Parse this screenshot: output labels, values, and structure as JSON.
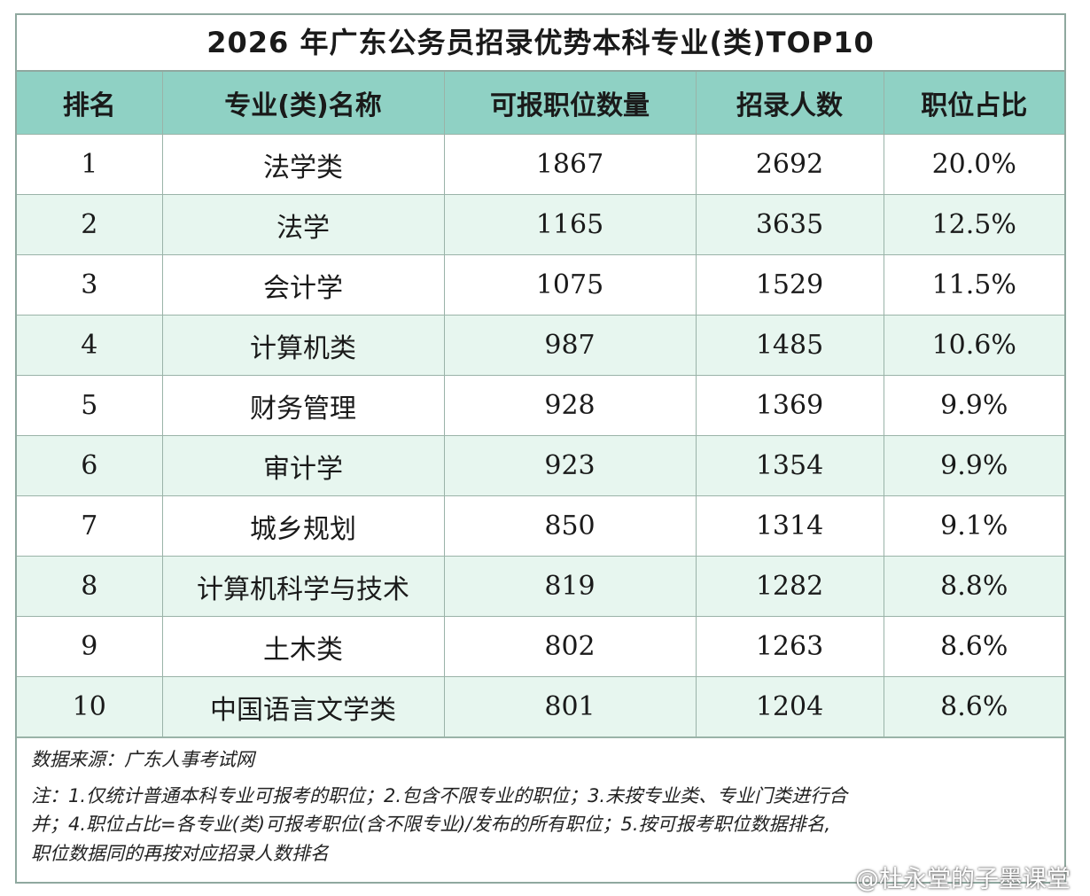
{
  "title": "2026 年广东公务员招录优势本科专业(类)TOP10",
  "table": {
    "headers": [
      "排名",
      "专业(类)名称",
      "可报职位数量",
      "招录人数",
      "职位占比"
    ],
    "rows": [
      [
        "1",
        "法学类",
        "1867",
        "2692",
        "20.0%"
      ],
      [
        "2",
        "法学",
        "1165",
        "3635",
        "12.5%"
      ],
      [
        "3",
        "会计学",
        "1075",
        "1529",
        "11.5%"
      ],
      [
        "4",
        "计算机类",
        "987",
        "1485",
        "10.6%"
      ],
      [
        "5",
        "财务管理",
        "928",
        "1369",
        "9.9%"
      ],
      [
        "6",
        "审计学",
        "923",
        "1354",
        "9.9%"
      ],
      [
        "7",
        "城乡规划",
        "850",
        "1314",
        "9.1%"
      ],
      [
        "8",
        "计算机科学与技术",
        "819",
        "1282",
        "8.8%"
      ],
      [
        "9",
        "土木类",
        "802",
        "1263",
        "8.6%"
      ],
      [
        "10",
        "中国语言文学类",
        "801",
        "1204",
        "8.6%"
      ]
    ]
  },
  "source": "数据来源：广东人事考试网",
  "notes": [
    "注：1.仅统计普通本科专业可报考的职位；2.包含不限专业的职位；3.未按专业类、专业门类进行合",
    "并；4.职位占比=各专业(类)可报考职位(含不限专业)/发布的所有职位；5.按可报考职位数据排名,",
    "职位数据同的再按对应招录人数排名"
  ],
  "watermark": "@杜永堂的子墨课堂",
  "colors": {
    "header_bg": "#8fd1c4",
    "alt_row_bg": "#e7f6ef",
    "border": "#8fa89f"
  }
}
